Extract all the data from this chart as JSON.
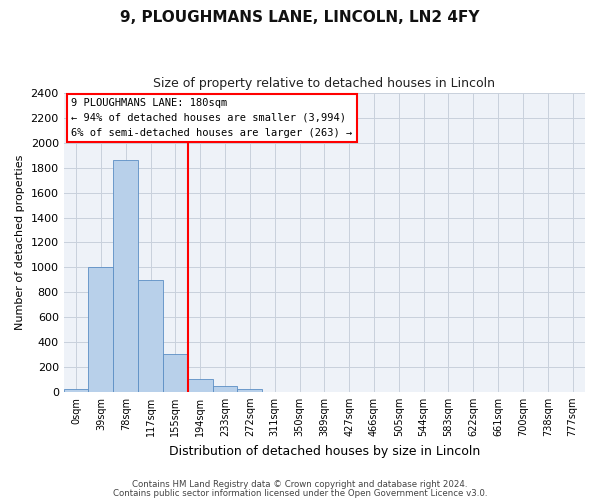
{
  "title": "9, PLOUGHMANS LANE, LINCOLN, LN2 4FY",
  "subtitle": "Size of property relative to detached houses in Lincoln",
  "xlabel": "Distribution of detached houses by size in Lincoln",
  "ylabel": "Number of detached properties",
  "bar_labels": [
    "0sqm",
    "39sqm",
    "78sqm",
    "117sqm",
    "155sqm",
    "194sqm",
    "233sqm",
    "272sqm",
    "311sqm",
    "350sqm",
    "389sqm",
    "427sqm",
    "466sqm",
    "505sqm",
    "544sqm",
    "583sqm",
    "622sqm",
    "661sqm",
    "700sqm",
    "738sqm",
    "777sqm"
  ],
  "bar_values": [
    20,
    1005,
    1860,
    900,
    305,
    100,
    45,
    20,
    0,
    0,
    0,
    0,
    0,
    0,
    0,
    0,
    0,
    0,
    0,
    0,
    0
  ],
  "bar_color": "#b8d0ea",
  "bar_edge_color": "#5b8ec4",
  "vline_x": 5,
  "vline_color": "red",
  "annotation_title": "9 PLOUGHMANS LANE: 180sqm",
  "annotation_line1": "← 94% of detached houses are smaller (3,994)",
  "annotation_line2": "6% of semi-detached houses are larger (263) →",
  "ylim": [
    0,
    2400
  ],
  "yticks": [
    0,
    200,
    400,
    600,
    800,
    1000,
    1200,
    1400,
    1600,
    1800,
    2000,
    2200,
    2400
  ],
  "footer1": "Contains HM Land Registry data © Crown copyright and database right 2024.",
  "footer2": "Contains public sector information licensed under the Open Government Licence v3.0.",
  "bg_color": "#ffffff",
  "plot_bg_color": "#eef2f8",
  "grid_color": "#c8d0dc"
}
